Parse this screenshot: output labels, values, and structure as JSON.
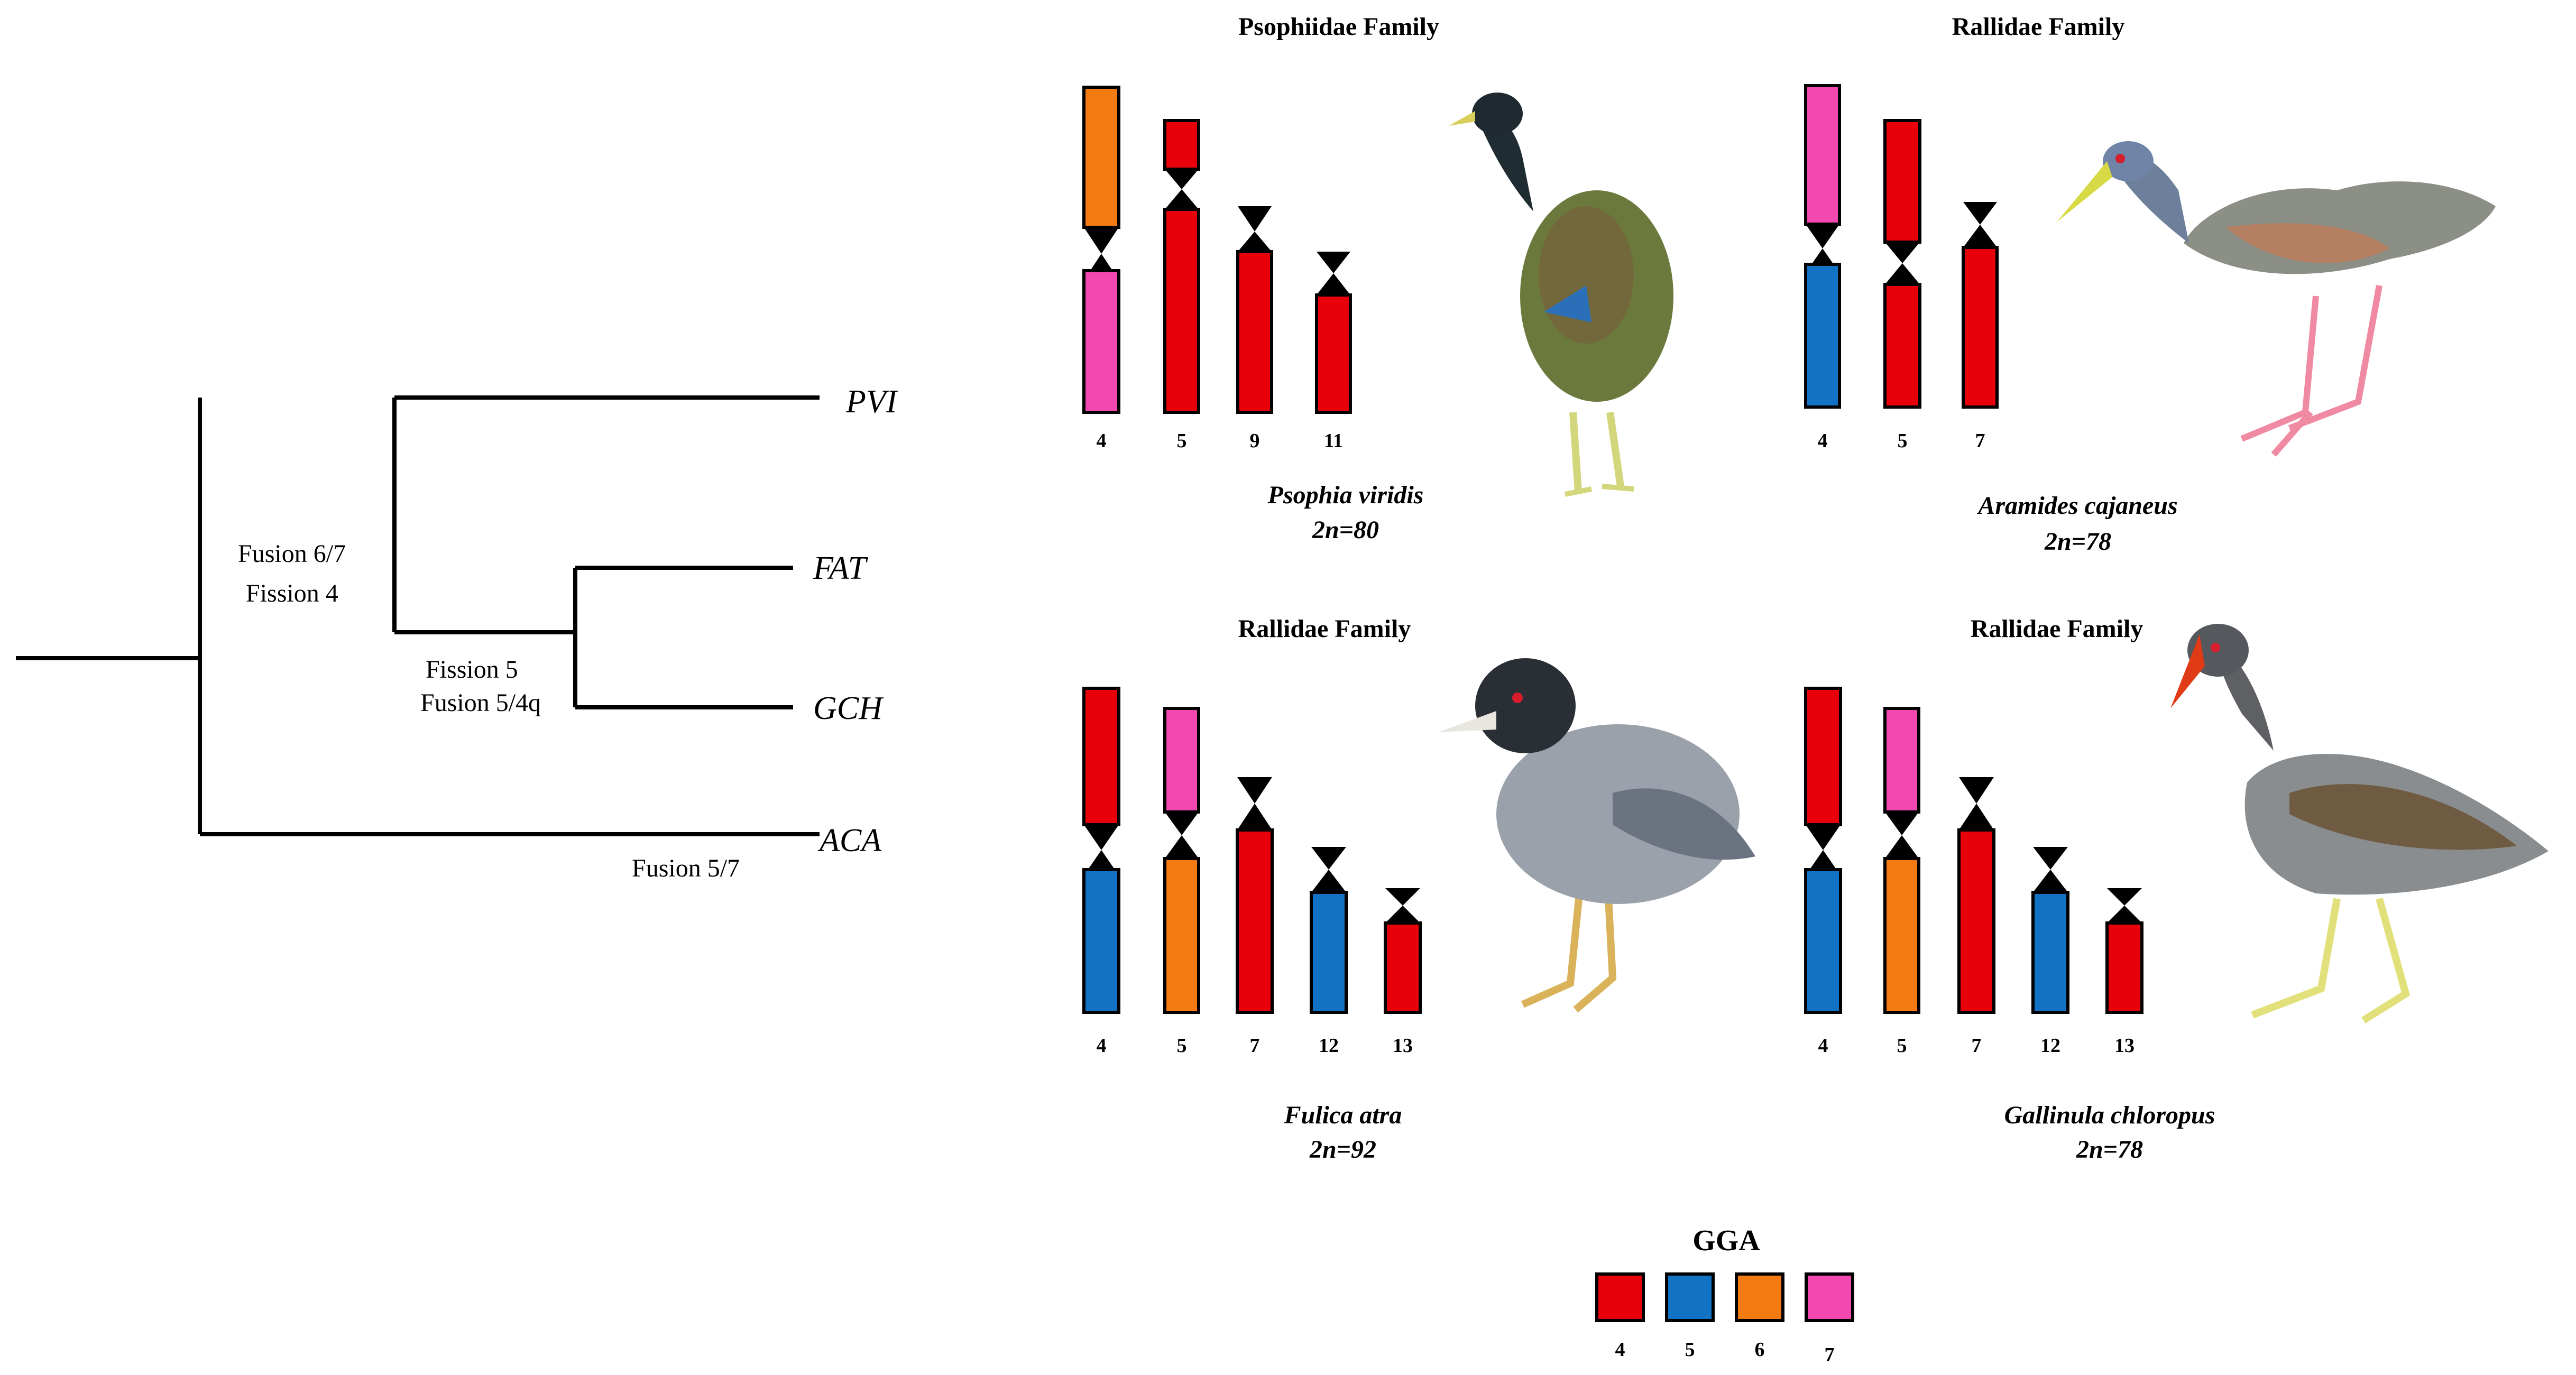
{
  "colors": {
    "gga4": "#e8000b",
    "gga5": "#1273c5",
    "gga6": "#f47b12",
    "gga7": "#f248b0",
    "outline": "#000000",
    "centromere": "#000000"
  },
  "tree": {
    "tips": [
      "PVI",
      "FAT",
      "GCH",
      "ACA"
    ],
    "events": {
      "fusion_6_7": "Fusion 6/7",
      "fission_4": "Fission 4",
      "fission_5": "Fission 5",
      "fusion_5_4q": "Fusion 5/4q",
      "fusion_5_7": "Fusion 5/7"
    }
  },
  "panels": [
    {
      "family": "Psophiidae Family",
      "species": "Psophia viridis",
      "karyotype": "2n=80",
      "chromosomes": [
        {
          "label": "4",
          "p": [
            "gga6"
          ],
          "q": [
            "gga7"
          ]
        },
        {
          "label": "5",
          "p": [
            "gga4"
          ],
          "q": [
            "gga4"
          ]
        },
        {
          "label": "9",
          "p": [],
          "q": [
            "gga4"
          ]
        },
        {
          "label": "11",
          "p": [],
          "q": [
            "gga4"
          ]
        }
      ]
    },
    {
      "family": "Rallidae Family",
      "species": "Aramides cajaneus",
      "karyotype": "2n=78",
      "chromosomes": [
        {
          "label": "4",
          "p": [
            "gga7"
          ],
          "q": [
            "gga5"
          ]
        },
        {
          "label": "5",
          "p": [
            "gga4"
          ],
          "q": [
            "gga4"
          ]
        },
        {
          "label": "7",
          "p": [],
          "q": [
            "gga4"
          ]
        }
      ]
    },
    {
      "family": "Rallidae Family",
      "species": "Fulica atra",
      "karyotype": "2n=92",
      "chromosomes": [
        {
          "label": "4",
          "p": [
            "gga4"
          ],
          "q": [
            "gga5"
          ]
        },
        {
          "label": "5",
          "p": [
            "gga7"
          ],
          "q": [
            "gga6"
          ]
        },
        {
          "label": "7",
          "p": [],
          "q": [
            "gga4"
          ]
        },
        {
          "label": "12",
          "p": [],
          "q": [
            "gga5"
          ]
        },
        {
          "label": "13",
          "p": [],
          "q": [
            "gga4"
          ]
        }
      ]
    },
    {
      "family": "Rallidae Family",
      "species": "Gallinula chloropus",
      "karyotype": "2n=78",
      "chromosomes": [
        {
          "label": "4",
          "p": [
            "gga4"
          ],
          "q": [
            "gga5"
          ]
        },
        {
          "label": "5",
          "p": [
            "gga7"
          ],
          "q": [
            "gga6"
          ]
        },
        {
          "label": "7",
          "p": [],
          "q": [
            "gga4"
          ]
        },
        {
          "label": "12",
          "p": [],
          "q": [
            "gga5"
          ]
        },
        {
          "label": "13",
          "p": [],
          "q": [
            "gga4"
          ]
        }
      ]
    }
  ],
  "legend": {
    "title": "GGA",
    "items": [
      {
        "label": "4",
        "color_key": "gga4"
      },
      {
        "label": "5",
        "color_key": "gga5"
      },
      {
        "label": "6",
        "color_key": "gga6"
      },
      {
        "label": "7",
        "color_key": "gga7"
      }
    ]
  }
}
